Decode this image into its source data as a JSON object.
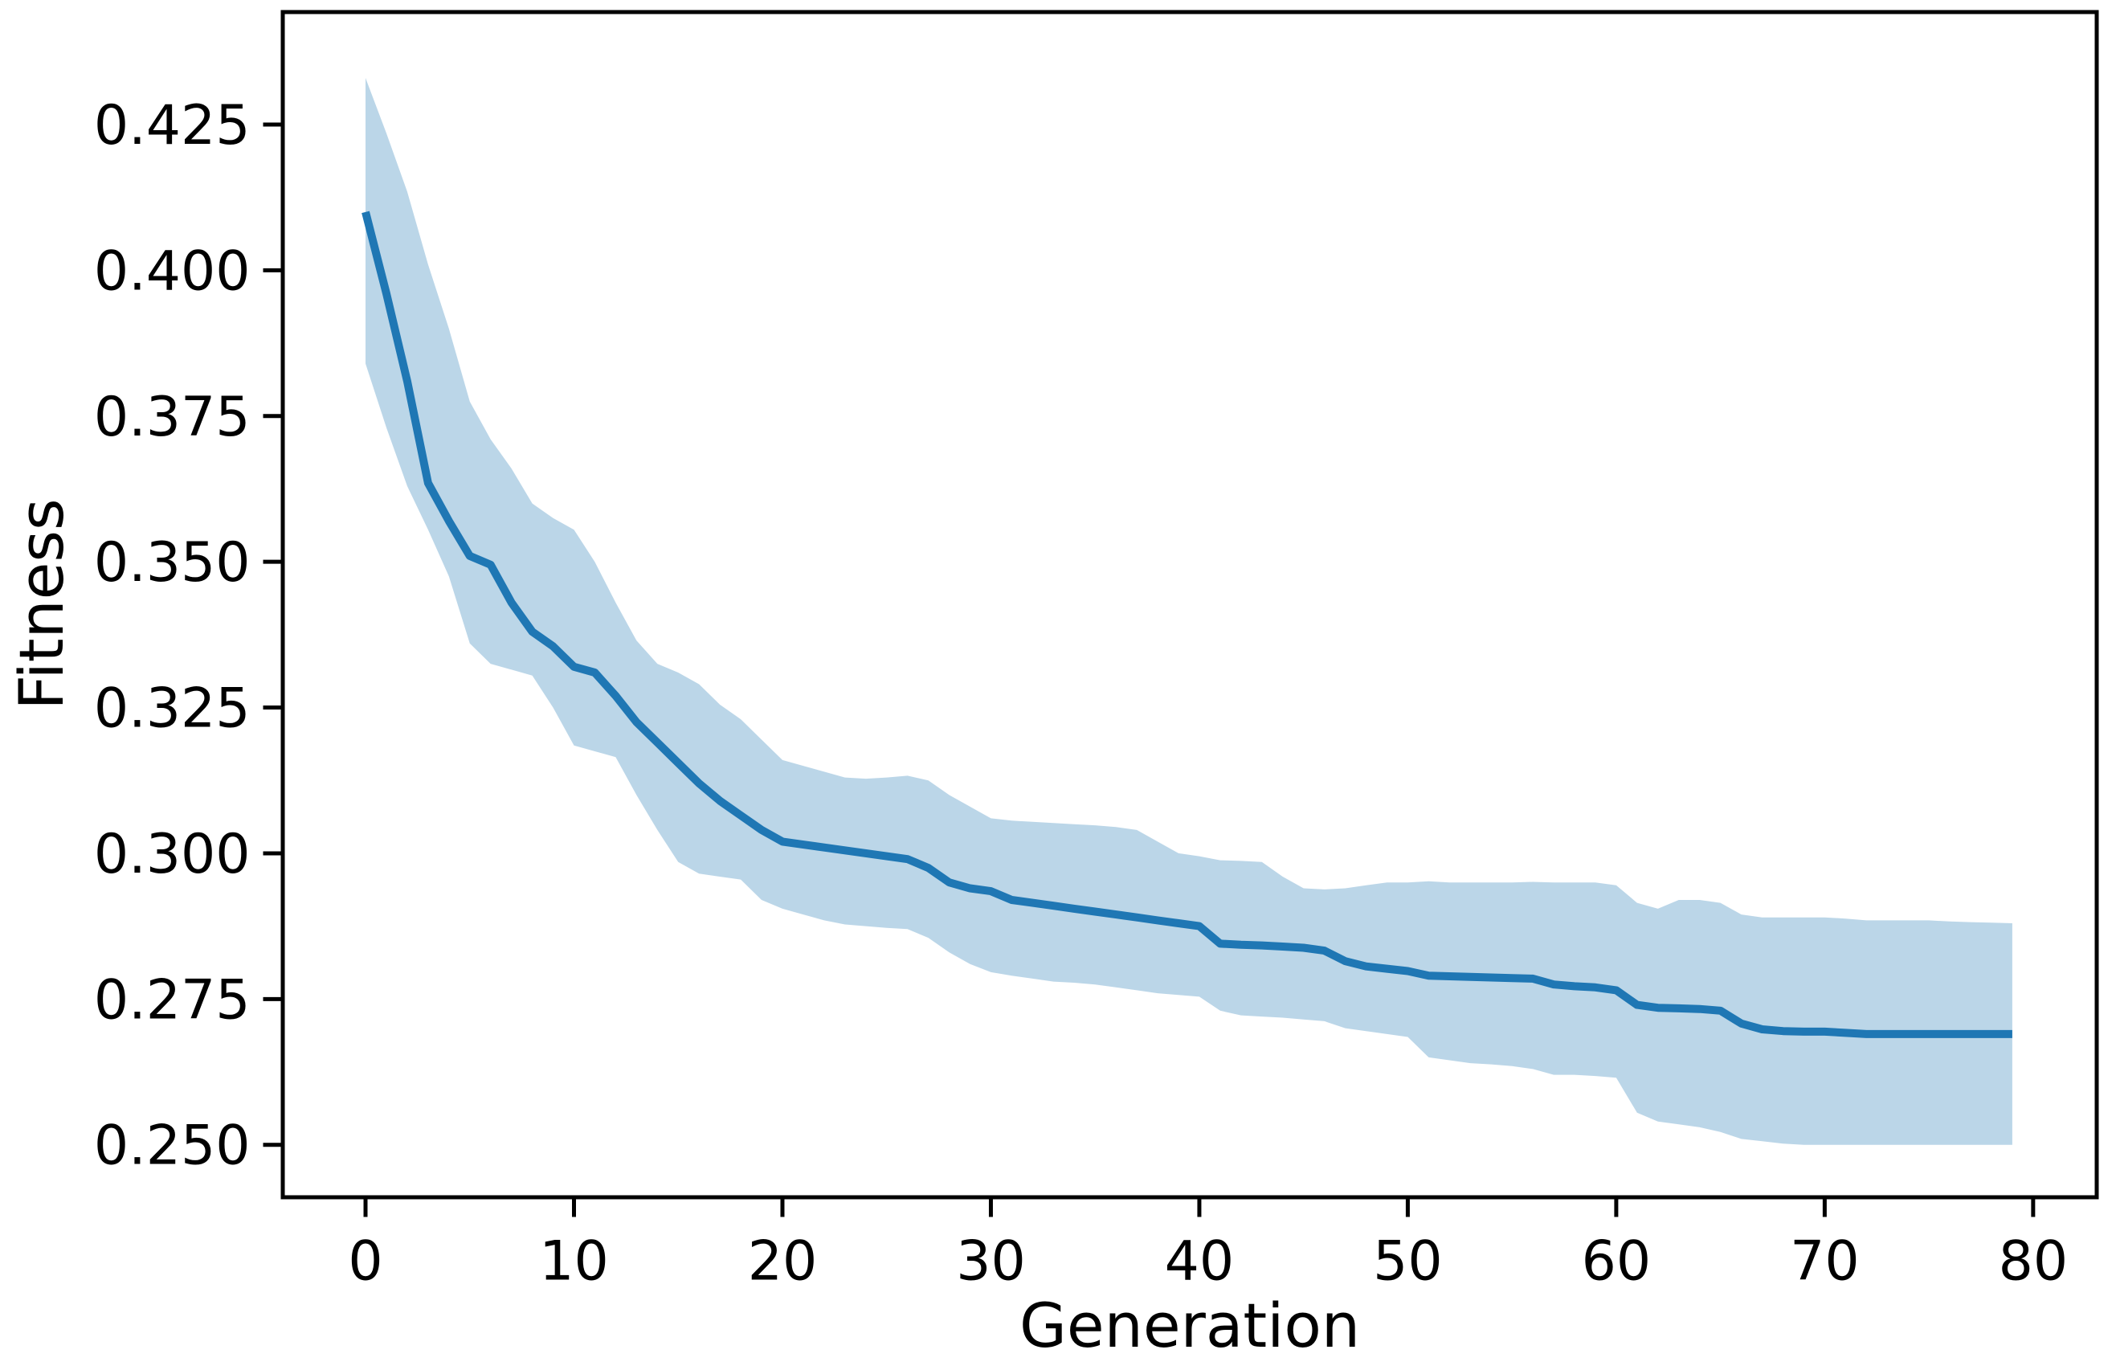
{
  "chart_data": {
    "type": "line",
    "title": "",
    "xlabel": "Generation",
    "ylabel": "Fitness",
    "legend": "none",
    "grid": false,
    "xlim": [
      -3.97,
      83.05
    ],
    "ylim": [
      0.241,
      0.4443
    ],
    "x_ticks": {
      "values": [
        0,
        10,
        20,
        30,
        40,
        50,
        60,
        70,
        80
      ],
      "labels": [
        "0",
        "10",
        "20",
        "30",
        "40",
        "50",
        "60",
        "70",
        "80"
      ]
    },
    "y_ticks": {
      "values": [
        0.25,
        0.275,
        0.3,
        0.325,
        0.35,
        0.375,
        0.4,
        0.425
      ],
      "labels": [
        "0.250",
        "0.275",
        "0.300",
        "0.325",
        "0.350",
        "0.375",
        "0.400",
        "0.425"
      ]
    },
    "x": [
      0,
      1,
      2,
      3,
      4,
      5,
      6,
      7,
      8,
      9,
      10,
      11,
      12,
      13,
      14,
      15,
      16,
      17,
      18,
      19,
      20,
      21,
      22,
      23,
      24,
      25,
      26,
      27,
      28,
      29,
      30,
      31,
      32,
      33,
      34,
      35,
      36,
      37,
      38,
      39,
      40,
      41,
      42,
      43,
      44,
      45,
      46,
      47,
      48,
      49,
      50,
      51,
      52,
      53,
      54,
      55,
      56,
      57,
      58,
      59,
      60,
      61,
      62,
      63,
      64,
      65,
      66,
      67,
      68,
      69,
      70,
      71,
      72,
      73,
      74,
      75,
      76,
      77,
      78,
      79
    ],
    "series": [
      {
        "name": "mean_fitness",
        "style": "solid-line",
        "values": [
          0.41,
          0.396,
          0.381,
          0.3635,
          0.357,
          0.351,
          0.3495,
          0.343,
          0.338,
          0.3355,
          0.332,
          0.331,
          0.327,
          0.3225,
          0.319,
          0.3155,
          0.312,
          0.309,
          0.3065,
          0.304,
          0.302,
          0.3015,
          0.301,
          0.3005,
          0.3,
          0.2995,
          0.299,
          0.2975,
          0.295,
          0.294,
          0.2935,
          0.292,
          0.2915,
          0.291,
          0.2905,
          0.29,
          0.2895,
          0.289,
          0.2885,
          0.288,
          0.2875,
          0.2845,
          0.2843,
          0.2842,
          0.284,
          0.2838,
          0.2833,
          0.2815,
          0.2806,
          0.2802,
          0.2798,
          0.279,
          0.2789,
          0.2788,
          0.2787,
          0.2786,
          0.2785,
          0.2775,
          0.2772,
          0.277,
          0.2765,
          0.274,
          0.2735,
          0.2734,
          0.2733,
          0.273,
          0.2708,
          0.2698,
          0.2695,
          0.2694,
          0.2694,
          0.2692,
          0.269,
          0.269,
          0.269,
          0.269,
          0.269,
          0.269,
          0.269,
          0.269
        ]
      },
      {
        "name": "band_upper",
        "style": "shaded-band-edge",
        "values": [
          0.433,
          0.4235,
          0.4135,
          0.401,
          0.39,
          0.3775,
          0.371,
          0.366,
          0.36,
          0.3575,
          0.3555,
          0.35,
          0.343,
          0.3365,
          0.3325,
          0.331,
          0.329,
          0.3255,
          0.323,
          0.3195,
          0.316,
          0.315,
          0.314,
          0.313,
          0.3128,
          0.313,
          0.3133,
          0.3125,
          0.31,
          0.308,
          0.306,
          0.3056,
          0.3054,
          0.3052,
          0.305,
          0.3048,
          0.3045,
          0.304,
          0.302,
          0.3,
          0.2995,
          0.2988,
          0.2987,
          0.2985,
          0.296,
          0.294,
          0.2938,
          0.294,
          0.2945,
          0.295,
          0.295,
          0.2952,
          0.295,
          0.295,
          0.295,
          0.295,
          0.2951,
          0.295,
          0.295,
          0.295,
          0.2945,
          0.2915,
          0.2905,
          0.292,
          0.292,
          0.2915,
          0.2895,
          0.289,
          0.289,
          0.289,
          0.289,
          0.2888,
          0.2885,
          0.2885,
          0.2885,
          0.2885,
          0.2883,
          0.2882,
          0.2881,
          0.288
        ]
      },
      {
        "name": "band_lower",
        "style": "shaded-band-edge",
        "values": [
          0.384,
          0.373,
          0.363,
          0.3555,
          0.3475,
          0.336,
          0.3325,
          0.3315,
          0.3305,
          0.325,
          0.3185,
          0.3175,
          0.3165,
          0.31,
          0.304,
          0.2985,
          0.2965,
          0.296,
          0.2955,
          0.292,
          0.2905,
          0.2895,
          0.2885,
          0.2878,
          0.2875,
          0.2872,
          0.287,
          0.2855,
          0.283,
          0.281,
          0.2796,
          0.279,
          0.2785,
          0.278,
          0.2778,
          0.2775,
          0.277,
          0.2765,
          0.276,
          0.2757,
          0.2754,
          0.273,
          0.2722,
          0.272,
          0.2718,
          0.2715,
          0.2712,
          0.27,
          0.2695,
          0.269,
          0.2685,
          0.265,
          0.2645,
          0.264,
          0.2638,
          0.2635,
          0.263,
          0.262,
          0.262,
          0.2618,
          0.2615,
          0.2555,
          0.254,
          0.2535,
          0.253,
          0.2522,
          0.251,
          0.2506,
          0.2502,
          0.25,
          0.25,
          0.25,
          0.25,
          0.25,
          0.25,
          0.25,
          0.25,
          0.25,
          0.25,
          0.25
        ]
      }
    ],
    "colors": {
      "line": "#1f77b4",
      "band": "#1f77b4",
      "band_opacity": 0.3,
      "spine": "#000000",
      "tick_label": "#000000",
      "background": "#ffffff"
    }
  }
}
